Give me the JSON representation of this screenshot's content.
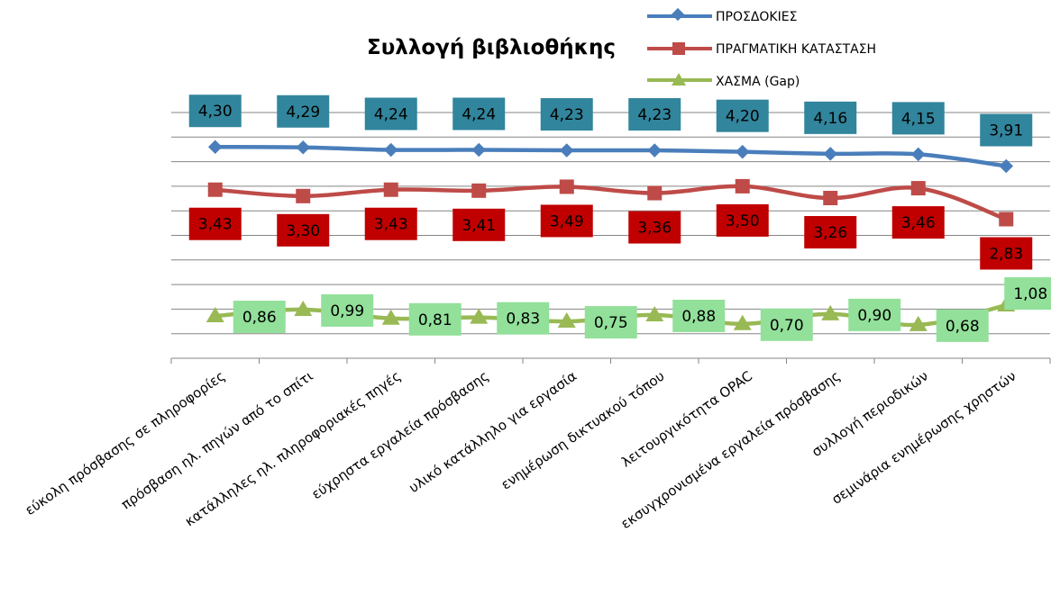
{
  "chart_data": {
    "type": "line",
    "title": "Συλλογή βιβλιοθήκης",
    "xlabel": "",
    "ylabel": "",
    "categories": [
      "εύκολη πρόσβασης σε πληροφορίες",
      "πρόσβαση ηλ. πηγών από το σπίτι",
      "κατάλληλες ηλ. πληροφοριακές πηγές",
      "εύχρηστα εργαλεία πρόσβασης",
      "υλικό κατάλληλο για εργασία",
      "ενημέρωση δικτυακού τόπου",
      "λειτουργικότητα OPAC",
      "εκσυγχρονισμένα εργαλεία πρόσβασης",
      "συλλογή περιοδικών",
      "σεμινάρια ενημέρωσης χρηστών"
    ],
    "series": [
      {
        "name": "ΠΡΟΣΔΟΚΙΕΣ",
        "color": "#4a7ebb",
        "marker": "diamond",
        "label_fill": "#31859c",
        "values": [
          4.3,
          4.29,
          4.24,
          4.24,
          4.23,
          4.23,
          4.2,
          4.16,
          4.15,
          3.91
        ],
        "labels": [
          "4,30",
          "4,29",
          "4,24",
          "4,24",
          "4,23",
          "4,23",
          "4,20",
          "4,16",
          "4,15",
          "3,91"
        ]
      },
      {
        "name": "ΠΡΑΓΜΑΤΙΚΗ ΚΑΤΑΣΤΑΣΗ",
        "color": "#be4b48",
        "marker": "square",
        "label_fill": "#c00000",
        "values": [
          3.43,
          3.3,
          3.43,
          3.41,
          3.49,
          3.36,
          3.5,
          3.26,
          3.46,
          2.83
        ],
        "labels": [
          "3,43",
          "3,30",
          "3,43",
          "3,41",
          "3,49",
          "3,36",
          "3,50",
          "3,26",
          "3,46",
          "2,83"
        ]
      },
      {
        "name": "ΧΑΣΜΑ (Gap)",
        "color": "#98b954",
        "marker": "triangle",
        "label_fill": "#92e09a",
        "values": [
          0.86,
          0.99,
          0.81,
          0.83,
          0.75,
          0.88,
          0.7,
          0.9,
          0.68,
          1.08
        ],
        "labels": [
          "0,86",
          "0,99",
          "0,81",
          "0,83",
          "0,75",
          "0,88",
          "0,70",
          "0,90",
          "0,68",
          "1,08"
        ]
      }
    ],
    "ylim": [
      0,
      5
    ],
    "ytick_step": 0.5,
    "y_axis_labels_shown": false,
    "grid": true,
    "legend": "top-right"
  }
}
